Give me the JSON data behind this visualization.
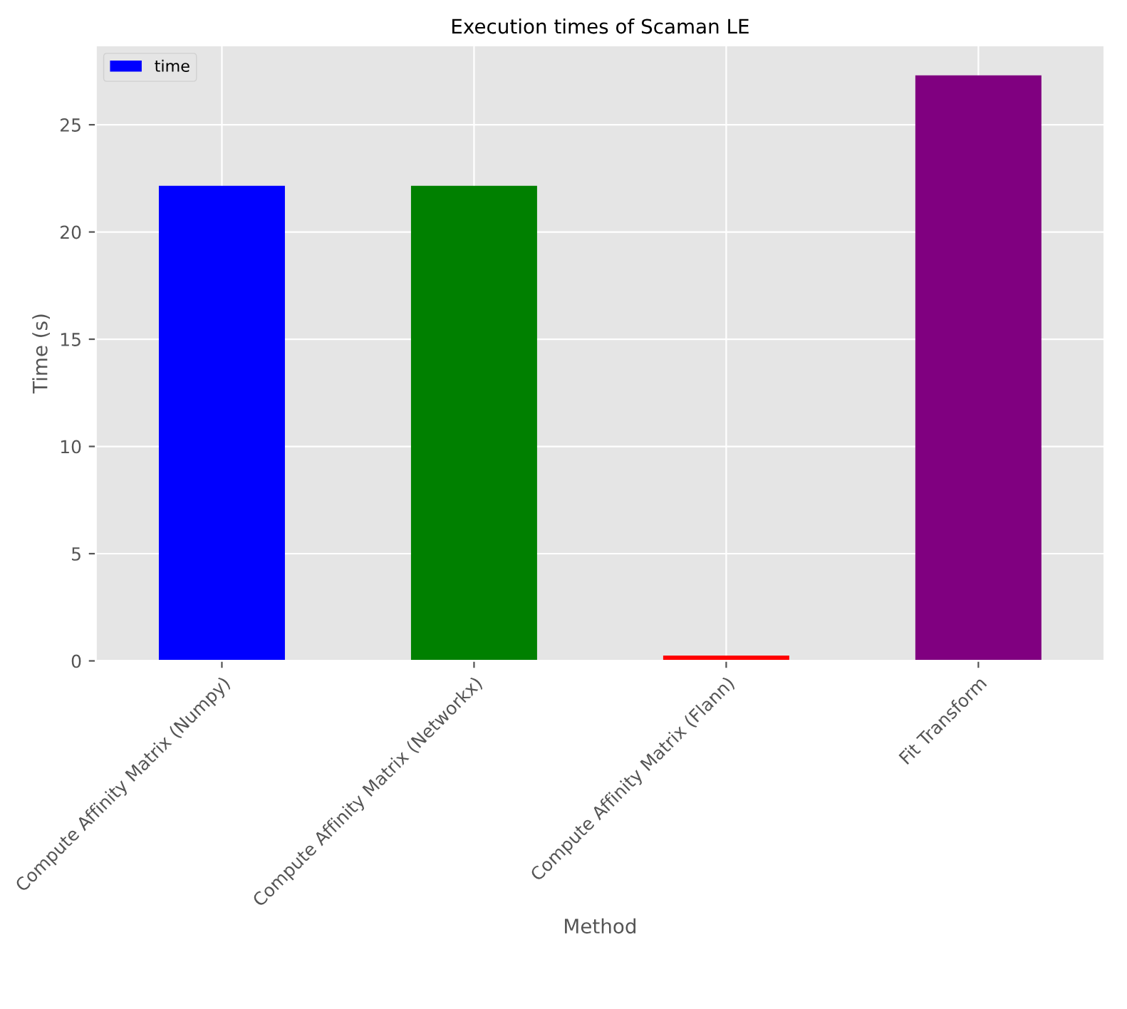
{
  "chart_data": {
    "type": "bar",
    "title": "Execution times of Scaman LE",
    "xlabel": "Method",
    "ylabel": "Time (s)",
    "categories": [
      "Compute Affinity Matrix (Numpy)",
      "Compute Affinity Matrix (Networkx)",
      "Compute Affinity Matrix (Flann)",
      "Fit Transform"
    ],
    "series": [
      {
        "name": "time",
        "colors": [
          "#0000ff",
          "#008000",
          "#ff0000",
          "#800080"
        ],
        "values": [
          22.15,
          22.15,
          0.25,
          27.3
        ]
      }
    ],
    "ylim": [
      0,
      28.7
    ],
    "yticks": [
      0,
      5,
      10,
      15,
      20,
      25
    ],
    "grid": true,
    "legend": "top left"
  }
}
